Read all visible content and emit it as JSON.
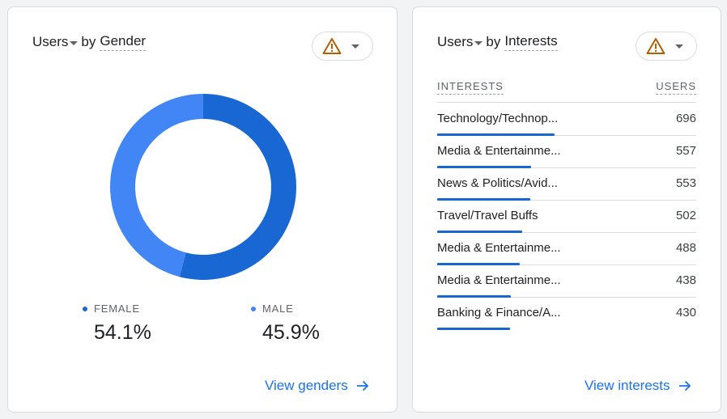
{
  "colors": {
    "female": "#1967d2",
    "male": "#4285f4",
    "warning": "#b06000",
    "link": "#1a73e8"
  },
  "gender_card": {
    "title": {
      "metric": "Users",
      "by": "by",
      "dimension": "Gender"
    },
    "warning_icon": "warning-triangle-icon",
    "chart_data": {
      "type": "pie",
      "categories": [
        "FEMALE",
        "MALE"
      ],
      "values": [
        54.1,
        45.9
      ]
    },
    "legend": [
      {
        "label": "FEMALE",
        "value": "54.1%"
      },
      {
        "label": "MALE",
        "value": "45.9%"
      }
    ],
    "link": "View genders"
  },
  "interests_card": {
    "title": {
      "metric": "Users",
      "by": "by",
      "dimension": "Interests"
    },
    "warning_icon": "warning-triangle-icon",
    "columns": {
      "label": "INTERESTS",
      "value": "USERS"
    },
    "rows": [
      {
        "label": "Technology/Technop...",
        "value": "696",
        "users": 696
      },
      {
        "label": "Media & Entertainme...",
        "value": "557",
        "users": 557
      },
      {
        "label": "News & Politics/Avid...",
        "value": "553",
        "users": 553
      },
      {
        "label": "Travel/Travel Buffs",
        "value": "502",
        "users": 502
      },
      {
        "label": "Media & Entertainme...",
        "value": "488",
        "users": 488
      },
      {
        "label": "Media & Entertainme...",
        "value": "438",
        "users": 438
      },
      {
        "label": "Banking & Finance/A...",
        "value": "430",
        "users": 430
      }
    ],
    "link": "View interests"
  }
}
